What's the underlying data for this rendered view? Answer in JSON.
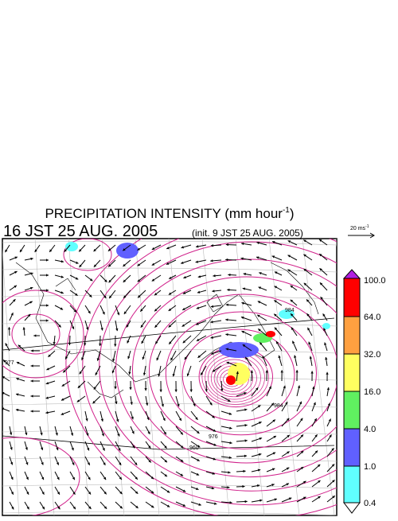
{
  "header": {
    "title": "PRECIPITATION INTENSITY (mm hour",
    "title_sup": "-1",
    "title_end": ")",
    "valid_time": "16 JST 25 AUG. 2005",
    "init_time": "(init. 9 JST 25 AUG. 2005)"
  },
  "vector_reference": {
    "label": "20 ms",
    "label_sup": "-1"
  },
  "colorbar": {
    "labels": [
      "100.0",
      "64.0",
      "32.0",
      "16.0",
      "4.0",
      "1.0",
      "0.4"
    ]
  },
  "map": {
    "contour_labels": [
      "984",
      "976",
      "960",
      "984",
      "977"
    ]
  }
}
